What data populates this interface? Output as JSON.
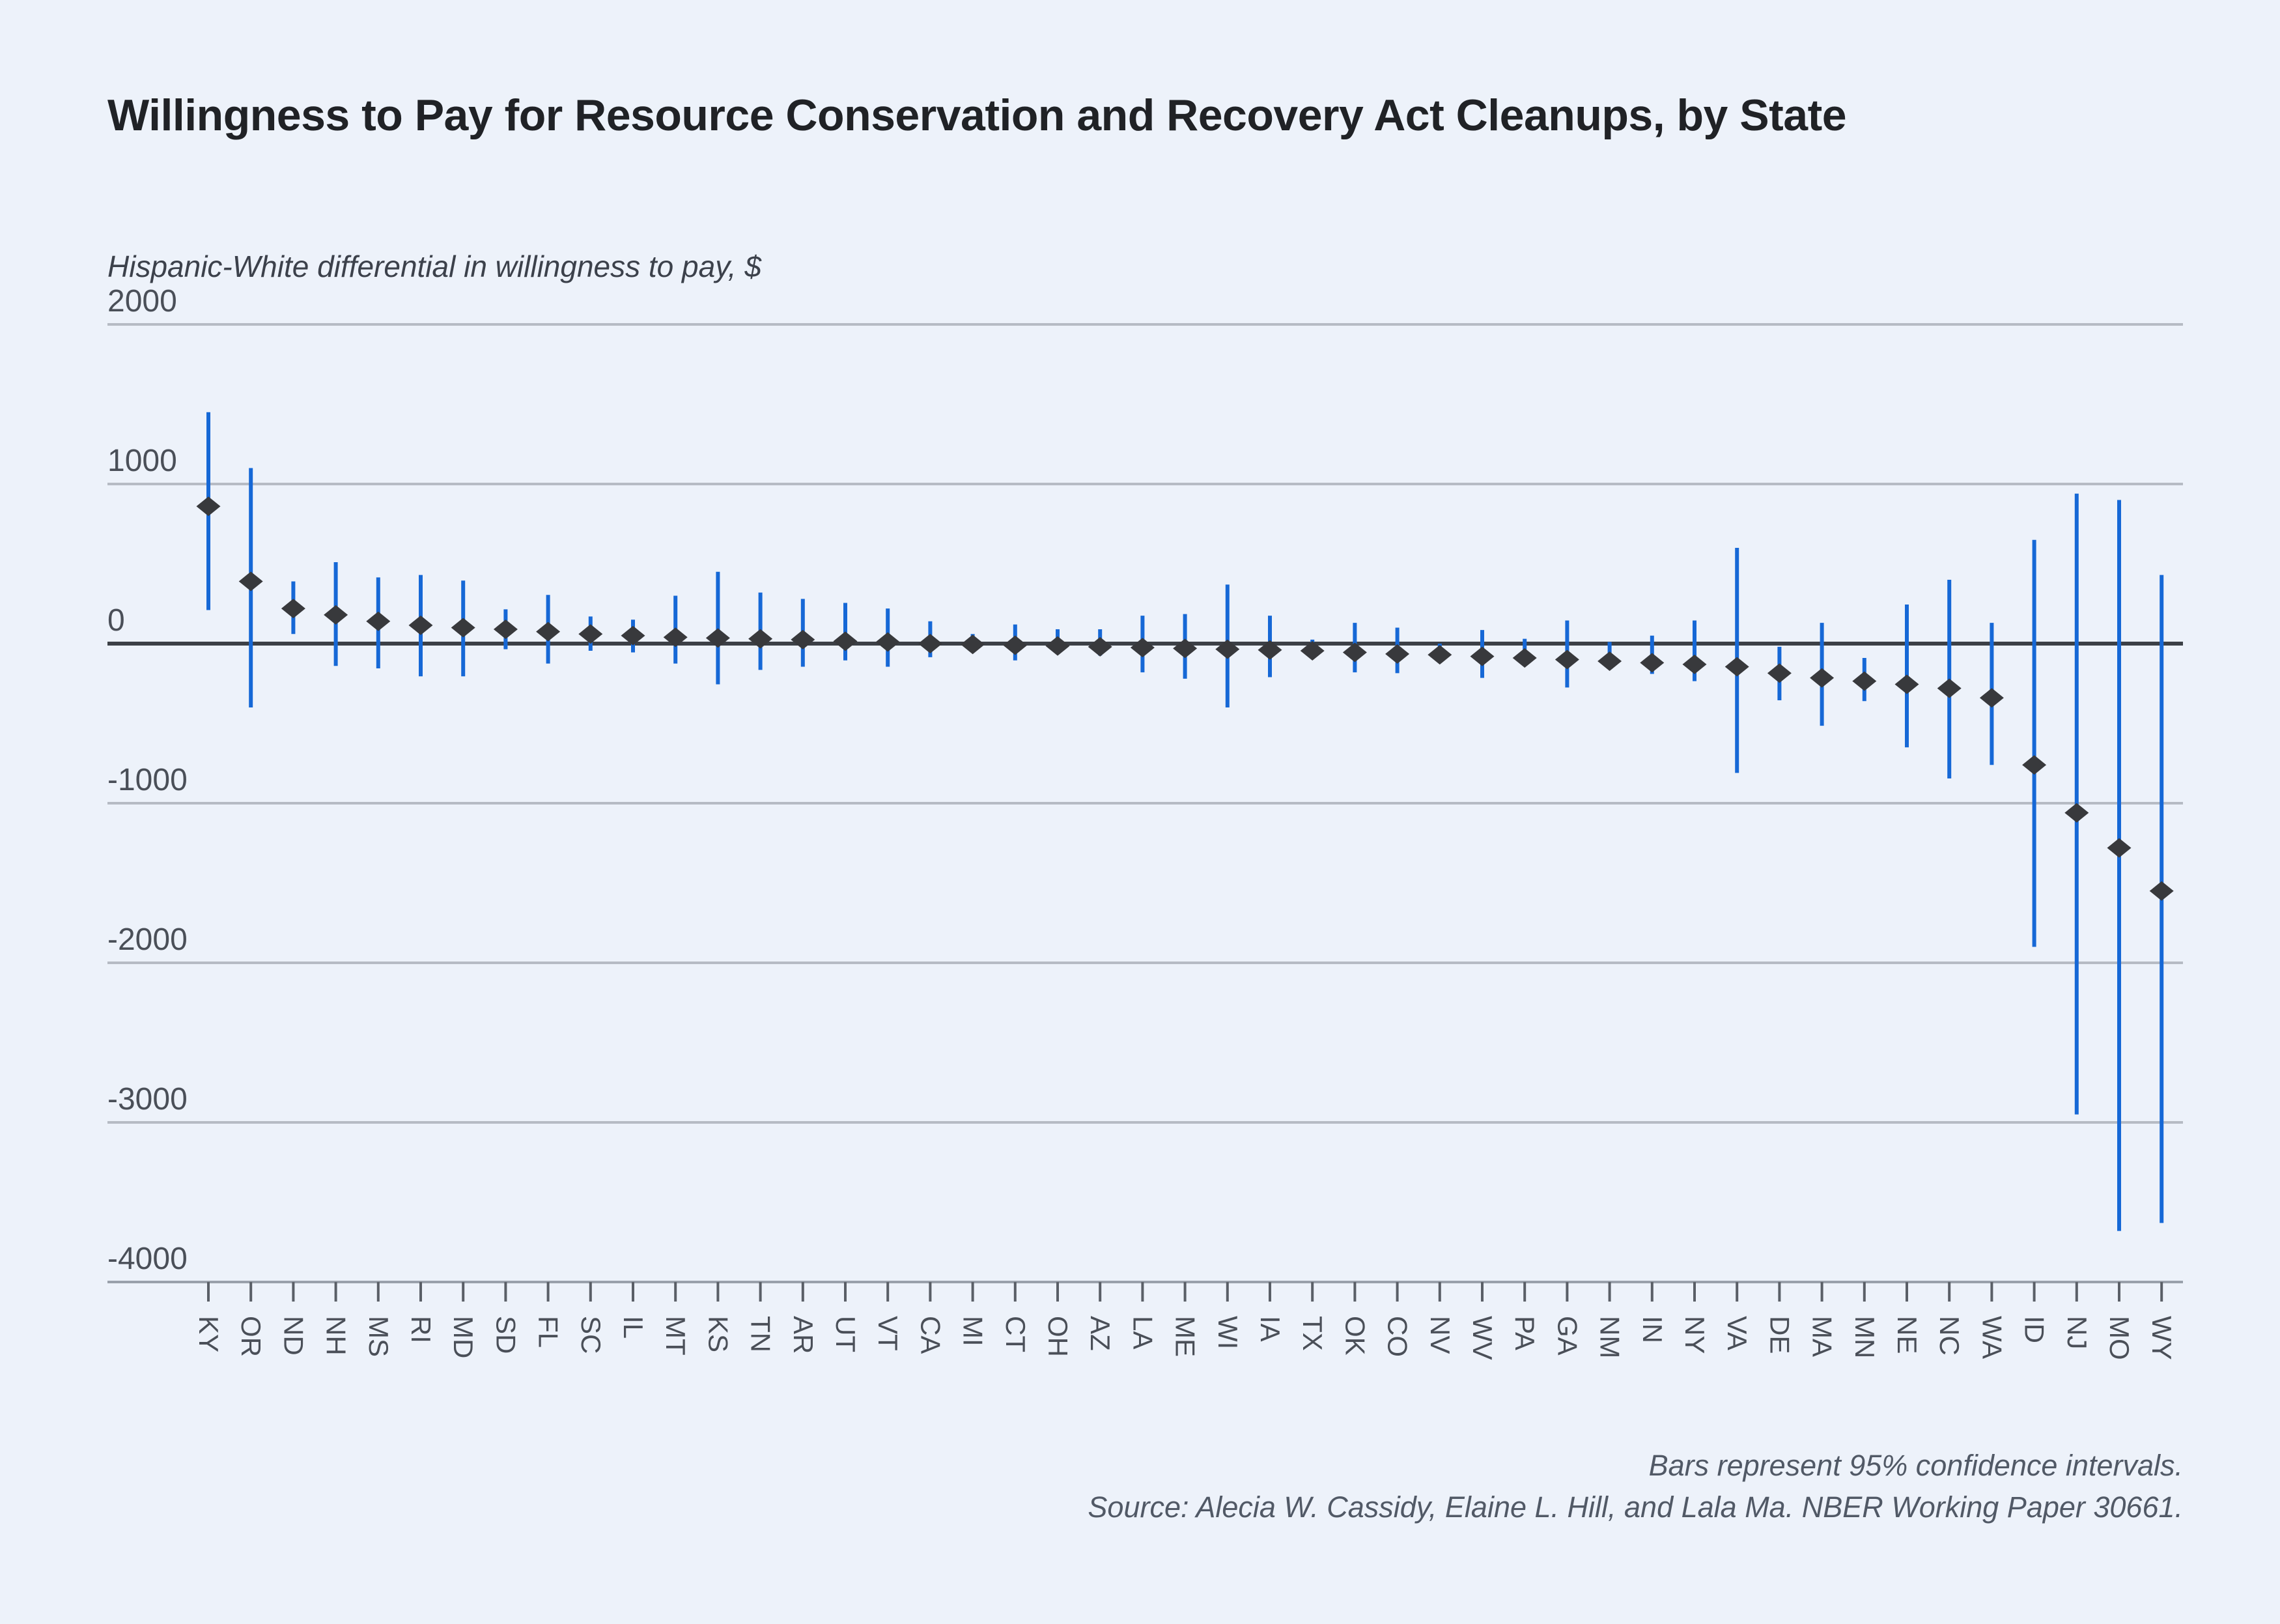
{
  "page": {
    "background": "#edf2fa"
  },
  "header": {
    "title": "Willingness to Pay for Resource Conservation and Recovery Act Cleanups, by State",
    "subtitle": "Hispanic-White differential in willingness to pay, $"
  },
  "footer": {
    "note_line1": "Bars represent 95% confidence intervals.",
    "note_line2": "Source: Alecia W. Cassidy, Elaine L. Hill, and Lala Ma. NBER Working Paper 30661."
  },
  "chart_data": {
    "type": "scatter",
    "marker": "diamond",
    "error_bars": "95% confidence intervals",
    "title": "Willingness to Pay for Resource Conservation and Recovery Act Cleanups, by State",
    "ylabel": "Hispanic-White differential in willingness to pay, $",
    "xlabel": "",
    "ylim": [
      -4000,
      2000
    ],
    "y_ticks": [
      2000,
      1000,
      0,
      -1000,
      -2000,
      -3000,
      -4000
    ],
    "grid": "horizontal",
    "zero_line_emphasized": true,
    "legend_position": "none",
    "categories": [
      "KY",
      "OR",
      "ND",
      "NH",
      "MS",
      "RI",
      "MD",
      "SD",
      "FL",
      "SC",
      "IL",
      "MT",
      "KS",
      "TN",
      "AR",
      "UT",
      "VT",
      "CA",
      "MI",
      "CT",
      "OH",
      "AZ",
      "LA",
      "ME",
      "WI",
      "IA",
      "TX",
      "OK",
      "CO",
      "NV",
      "WV",
      "PA",
      "GA",
      "NM",
      "IN",
      "NY",
      "VA",
      "DE",
      "MA",
      "MN",
      "NE",
      "NC",
      "WA",
      "ID",
      "NJ",
      "MO",
      "WY"
    ],
    "series": [
      {
        "name": "Hispanic-White differential in willingness to pay ($)",
        "values": [
          860,
          390,
          220,
          180,
          140,
          115,
          100,
          90,
          75,
          60,
          50,
          40,
          35,
          30,
          25,
          15,
          10,
          0,
          -5,
          -10,
          -15,
          -20,
          -25,
          -30,
          -35,
          -40,
          -45,
          -55,
          -65,
          -70,
          -80,
          -90,
          -100,
          -110,
          -120,
          -130,
          -145,
          -185,
          -215,
          -235,
          -255,
          -280,
          -340,
          -760,
          -1060,
          -1280,
          -1550
        ],
        "ci_low": [
          210,
          -400,
          60,
          -140,
          -155,
          -205,
          -205,
          -35,
          -125,
          -45,
          -55,
          -125,
          -255,
          -165,
          -145,
          -105,
          -145,
          -85,
          -55,
          -105,
          -60,
          -75,
          -180,
          -220,
          -400,
          -210,
          -55,
          -180,
          -185,
          -85,
          -215,
          -105,
          -275,
          -150,
          -190,
          -235,
          -810,
          -355,
          -515,
          -360,
          -650,
          -845,
          -760,
          -1900,
          -2950,
          -3680,
          -3630
        ],
        "ci_high": [
          1450,
          1100,
          390,
          510,
          415,
          430,
          395,
          215,
          305,
          170,
          150,
          300,
          450,
          320,
          280,
          255,
          220,
          140,
          60,
          120,
          90,
          90,
          175,
          185,
          370,
          175,
          25,
          130,
          100,
          0,
          85,
          30,
          145,
          10,
          50,
          145,
          600,
          -20,
          130,
          -90,
          245,
          400,
          130,
          650,
          940,
          900,
          430
        ]
      }
    ],
    "annotations": [
      "Bars represent 95% confidence intervals.",
      "Source: Alecia W. Cassidy, Elaine L. Hill, and Lala Ma. NBER Working Paper 30661."
    ],
    "colors": {
      "background": "#edf2fa",
      "point_marker": "#38393c",
      "ci_bar": "#1668d6",
      "gridline": "#b6bbc4",
      "zero_line": "#3c4046",
      "axis_line": "#9aa1ab",
      "tick_mark": "#5a5f67",
      "axis_text": "#4a4f58",
      "title_text": "#202226",
      "note_text": "#515966"
    }
  }
}
